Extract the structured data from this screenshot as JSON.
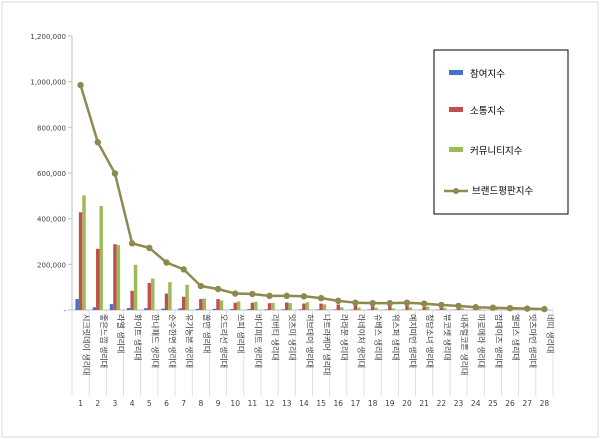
{
  "chart_data": {
    "type": "bar",
    "ylim": [
      0,
      1200000
    ],
    "yticks": [
      0,
      200000,
      400000,
      600000,
      800000,
      1000000,
      1200000
    ],
    "ytick_labels": [
      "-",
      "200,000",
      "400,000",
      "600,000",
      "800,000",
      "1,000,000",
      "1,200,000"
    ],
    "grid": false,
    "legend_position": "right",
    "categories": [
      "시크릿데이 생리대",
      "좋은느낌 생리대",
      "라엘 생리대",
      "화이트 생리대",
      "한나패드 생리대",
      "순수한면 생리대",
      "유기농본 생리대",
      "쏠만 생리대",
      "오드리선 생리대",
      "쓰피 생리대",
      "바디피트 생리대",
      "리버티 생리대",
      "잇츠미 생리대",
      "허브데이 생리대",
      "나트라케어 생리대",
      "라라문 생리대",
      "라네이처 생리대",
      "슈베스 생리대",
      "위스퍼 생리대",
      "예지미인 생리대",
      "청담소녀 생리대",
      "뷰코셋 생리대",
      "내츄럴코튼 생리대",
      "마로메라 생리대",
      "잡데이즈 생리대",
      "엘리스 생리대",
      "잇츠마인 생리대",
      "네띠 생리대"
    ],
    "category_numbers": [
      "1",
      "2",
      "3",
      "4",
      "5",
      "6",
      "7",
      "8",
      "9",
      "10",
      "11",
      "12",
      "13",
      "14",
      "15",
      "16",
      "17",
      "18",
      "19",
      "20",
      "21",
      "22",
      "23",
      "24",
      "25",
      "26",
      "27",
      "28"
    ],
    "series": [
      {
        "name": "참여지수",
        "kind": "bar",
        "color": "#4472c4",
        "values": [
          48000,
          12000,
          26000,
          9000,
          8000,
          6000,
          7000,
          5000,
          5000,
          4000,
          4000,
          3000,
          3000,
          3000,
          2500,
          2500,
          2000,
          2000,
          2000,
          1500,
          1500,
          1500,
          1200,
          1000,
          1000,
          800,
          800,
          500
        ]
      },
      {
        "name": "소통지수",
        "kind": "bar",
        "color": "#c0504d",
        "values": [
          428000,
          268000,
          288000,
          84000,
          118000,
          72000,
          58000,
          48000,
          48000,
          32000,
          32000,
          30000,
          33000,
          28000,
          28000,
          24000,
          20000,
          17000,
          22000,
          20000,
          14000,
          13000,
          11000,
          8000,
          6000,
          5000,
          4000,
          2000
        ]
      },
      {
        "name": "커뮤니티지수",
        "kind": "bar",
        "color": "#9bbb59",
        "values": [
          502000,
          455000,
          285000,
          198000,
          138000,
          122000,
          110000,
          50000,
          42000,
          38000,
          36000,
          31000,
          30000,
          34000,
          25000,
          12000,
          11000,
          10000,
          7000,
          12000,
          15000,
          9000,
          8000,
          5000,
          4000,
          3000,
          2000,
          1000
        ]
      },
      {
        "name": "브랜드평판지수",
        "kind": "line",
        "color": "#8c8a4e",
        "values": [
          985000,
          735000,
          598000,
          292000,
          272000,
          208000,
          178000,
          105000,
          92000,
          72000,
          70000,
          62000,
          62000,
          60000,
          52000,
          40000,
          32000,
          30000,
          30000,
          32000,
          28000,
          22000,
          18000,
          12000,
          10000,
          8000,
          6000,
          4000
        ]
      }
    ]
  }
}
